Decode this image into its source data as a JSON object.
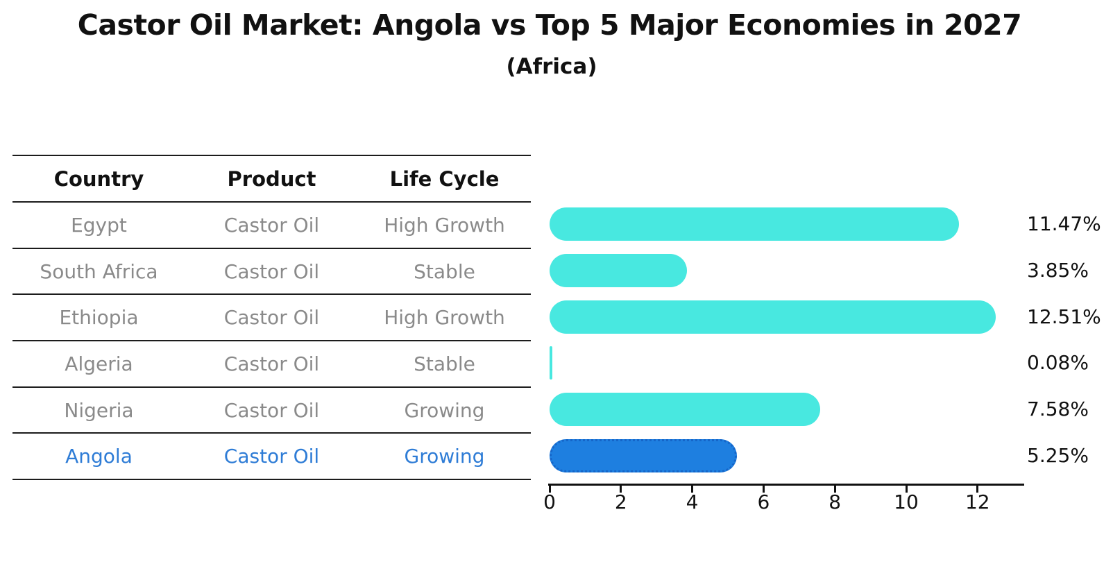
{
  "title": "Castor Oil Market: Angola vs Top 5 Major Economies in 2027",
  "subtitle": "(Africa)",
  "colors": {
    "bar_default": "#48E8E0",
    "bar_highlight": "#1E7FE0",
    "bar_highlight_border": "#1565C8",
    "highlight_text": "#2E7CD6",
    "row_text": "#8A8A8A",
    "header_text": "#111111",
    "axis": "#111111"
  },
  "table": {
    "headers": [
      "Country",
      "Product",
      "Life Cycle"
    ],
    "rows": [
      {
        "country": "Egypt",
        "product": "Castor Oil",
        "life_cycle": "High Growth",
        "highlight": false
      },
      {
        "country": "South Africa",
        "product": "Castor Oil",
        "life_cycle": "Stable",
        "highlight": false
      },
      {
        "country": "Ethiopia",
        "product": "Castor Oil",
        "life_cycle": "High Growth",
        "highlight": false
      },
      {
        "country": "Algeria",
        "product": "Castor Oil",
        "life_cycle": "Stable",
        "highlight": false
      },
      {
        "country": "Nigeria",
        "product": "Castor Oil",
        "life_cycle": "Growing",
        "highlight": false
      },
      {
        "country": "Angola",
        "product": "Castor Oil",
        "life_cycle": "Growing",
        "highlight": true
      }
    ]
  },
  "chart_data": {
    "type": "bar",
    "orientation": "horizontal",
    "title": "Castor Oil Market: Angola vs Top 5 Major Economies in 2027",
    "subtitle": "(Africa)",
    "categories": [
      "Egypt",
      "South Africa",
      "Ethiopia",
      "Algeria",
      "Nigeria",
      "Angola"
    ],
    "values": [
      11.47,
      3.85,
      12.51,
      0.08,
      7.58,
      5.25
    ],
    "value_labels": [
      "11.47%",
      "3.85%",
      "12.51%",
      "0.08%",
      "7.58%",
      "5.25%"
    ],
    "highlight_index": 5,
    "highlight_style": "blue bar with dotted outline",
    "xlabel": "",
    "ylabel": "",
    "xlim": [
      0,
      13.3
    ],
    "x_ticks": [
      0,
      2,
      4,
      6,
      8,
      10,
      12
    ],
    "grid": false,
    "legend": false,
    "value_label_position": "right"
  }
}
